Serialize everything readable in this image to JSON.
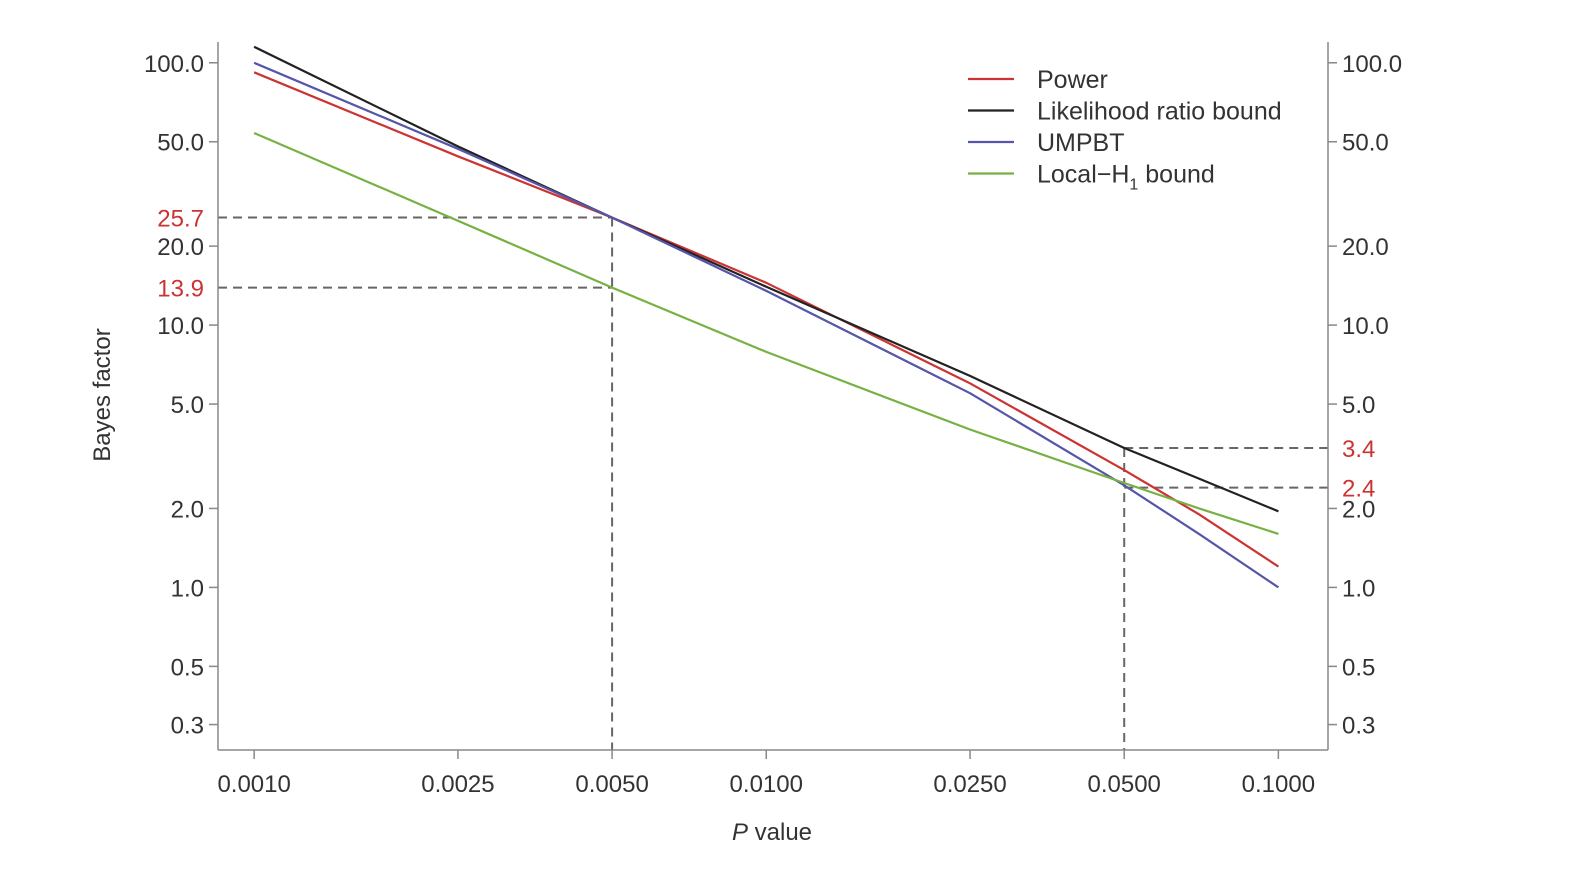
{
  "chart_data": {
    "type": "line",
    "title": "",
    "xlabel_italic": "P",
    "xlabel_rest": " value",
    "ylabel": "Bayes factor",
    "x_scale": "log",
    "y_scale": "log",
    "xlim": [
      0.00085,
      0.125
    ],
    "ylim": [
      0.24,
      120
    ],
    "x_ticks": [
      {
        "value": 0.001,
        "label": "0.0010"
      },
      {
        "value": 0.0025,
        "label": "0.0025"
      },
      {
        "value": 0.005,
        "label": "0.0050"
      },
      {
        "value": 0.01,
        "label": "0.0100"
      },
      {
        "value": 0.025,
        "label": "0.0250"
      },
      {
        "value": 0.05,
        "label": "0.0500"
      },
      {
        "value": 0.1,
        "label": "0.1000"
      }
    ],
    "y_ticks": [
      {
        "value": 0.3,
        "label": "0.3"
      },
      {
        "value": 0.5,
        "label": "0.5"
      },
      {
        "value": 1.0,
        "label": "1.0"
      },
      {
        "value": 2.0,
        "label": "2.0"
      },
      {
        "value": 5.0,
        "label": "5.0"
      },
      {
        "value": 10.0,
        "label": "10.0"
      },
      {
        "value": 20.0,
        "label": "20.0"
      },
      {
        "value": 50.0,
        "label": "50.0"
      },
      {
        "value": 100.0,
        "label": "100.0"
      }
    ],
    "legend_position": "top-right",
    "series": [
      {
        "name": "Power",
        "color": "#cc3333",
        "x": [
          0.001,
          0.0025,
          0.005,
          0.01,
          0.025,
          0.05,
          0.07,
          0.1
        ],
        "y": [
          92,
          44,
          25.7,
          14.5,
          6.0,
          2.8,
          1.9,
          1.2
        ]
      },
      {
        "name": "Likelihood ratio bound",
        "color": "#222222",
        "x": [
          0.001,
          0.0025,
          0.005,
          0.01,
          0.025,
          0.05,
          0.07,
          0.1
        ],
        "y": [
          115,
          48,
          25.7,
          14.0,
          6.4,
          3.4,
          2.6,
          1.95
        ]
      },
      {
        "name": "UMPBT",
        "color": "#5555aa",
        "x": [
          0.001,
          0.0025,
          0.005,
          0.01,
          0.025,
          0.05,
          0.07,
          0.1
        ],
        "y": [
          100,
          47,
          25.7,
          13.5,
          5.5,
          2.45,
          1.6,
          1.0
        ]
      },
      {
        "name": "Local−H",
        "subscript": "1",
        "name_suffix": " bound",
        "color": "#77b144",
        "x": [
          0.001,
          0.0025,
          0.005,
          0.01,
          0.025,
          0.05,
          0.07,
          0.1
        ],
        "y": [
          54,
          25.0,
          13.9,
          7.9,
          4.0,
          2.5,
          2.0,
          1.6
        ]
      }
    ],
    "reference_lines": [
      {
        "x": 0.005,
        "y": 25.7,
        "label": "25.7",
        "side": "left"
      },
      {
        "x": 0.005,
        "y": 13.9,
        "label": "13.9",
        "side": "left"
      },
      {
        "x": 0.05,
        "y": 3.4,
        "label": "3.4",
        "side": "right"
      },
      {
        "x": 0.05,
        "y": 2.4,
        "label": "2.4",
        "side": "right"
      }
    ],
    "annotation_color": "#cc3333",
    "reference_line_color": "#666666",
    "axis_color": "#888888"
  }
}
